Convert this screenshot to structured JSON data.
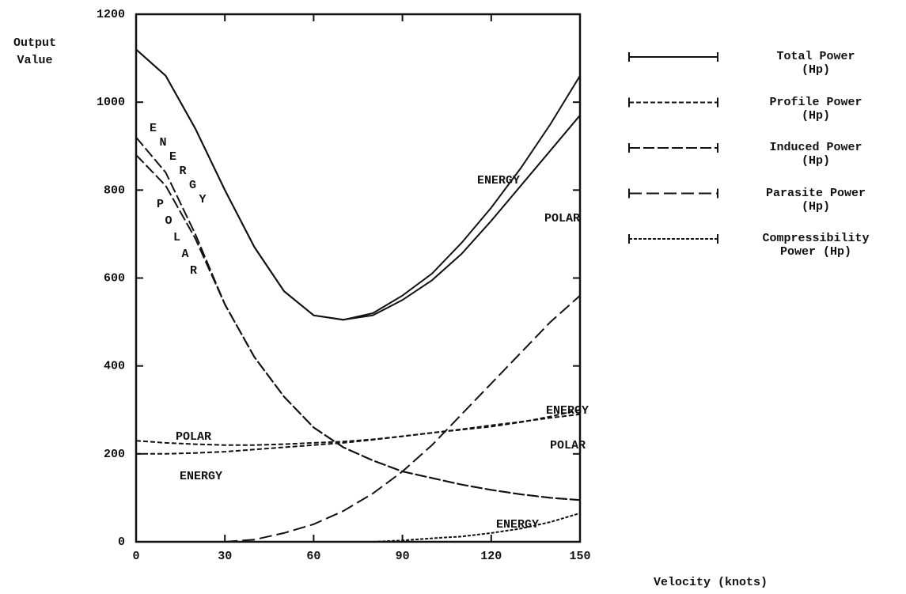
{
  "chart_data": {
    "type": "line",
    "x_label": "Velocity (knots)",
    "y_label": "Output Value",
    "x": [
      0,
      10,
      20,
      30,
      40,
      50,
      60,
      70,
      80,
      90,
      100,
      110,
      120,
      130,
      140,
      150
    ],
    "xlim": [
      0,
      150
    ],
    "xticks": [
      0,
      30,
      60,
      90,
      120,
      150
    ],
    "ylim": [
      0,
      1200
    ],
    "yticks": [
      0,
      200,
      400,
      600,
      800,
      1000,
      1200
    ],
    "series": [
      {
        "name": "Total Power (Hp)",
        "color": "#111111",
        "dash": "none",
        "curves": [
          {
            "label": "ENERGY",
            "values": [
              1120,
              1060,
              940,
              800,
              670,
              570,
              515,
              505,
              520,
              560,
              610,
              680,
              760,
              850,
              950,
              1060
            ]
          },
          {
            "label": "POLAR",
            "values": [
              1120,
              1060,
              940,
              800,
              670,
              570,
              515,
              505,
              515,
              550,
              595,
              655,
              730,
              810,
              890,
              970
            ]
          }
        ]
      },
      {
        "name": "Profile Power (Hp)",
        "color": "#111111",
        "dash": "6 3",
        "curves": [
          {
            "label": "ENERGY",
            "values": [
              200,
              200,
              202,
              205,
              210,
              215,
              220,
              225,
              232,
              240,
              248,
              255,
              262,
              272,
              285,
              300
            ]
          },
          {
            "label": "POLAR",
            "values": [
              230,
              225,
              222,
              220,
              220,
              222,
              225,
              228,
              233,
              240,
              248,
              256,
              265,
              273,
              282,
              290
            ]
          }
        ]
      },
      {
        "name": "Induced Power (Hp)",
        "color": "#111111",
        "dash": "14 4",
        "curves": [
          {
            "label": "ENERGY",
            "values": [
              920,
              840,
              700,
              540,
              420,
              330,
              260,
              215,
              185,
              160,
              145,
              130,
              118,
              108,
              100,
              95
            ]
          },
          {
            "label": "POLAR",
            "values": [
              880,
              810,
              690,
              540,
              420,
              330,
              260,
              215,
              185,
              160,
              145,
              130,
              118,
              108,
              100,
              95
            ]
          }
        ]
      },
      {
        "name": "Parasite Power (Hp)",
        "color": "#111111",
        "dash": "16 6",
        "curves": [
          {
            "values": [
              null,
              null,
              null,
              0,
              5,
              20,
              40,
              70,
              110,
              160,
              220,
              290,
              360,
              430,
              500,
              560
            ]
          }
        ]
      },
      {
        "name": "Compressibility Power (Hp)",
        "color": "#111111",
        "dash": "4 2",
        "curves": [
          {
            "label": "ENERGY",
            "values": [
              null,
              null,
              null,
              null,
              null,
              null,
              null,
              null,
              0,
              3,
              8,
              12,
              20,
              30,
              45,
              65
            ]
          }
        ]
      }
    ]
  }
}
